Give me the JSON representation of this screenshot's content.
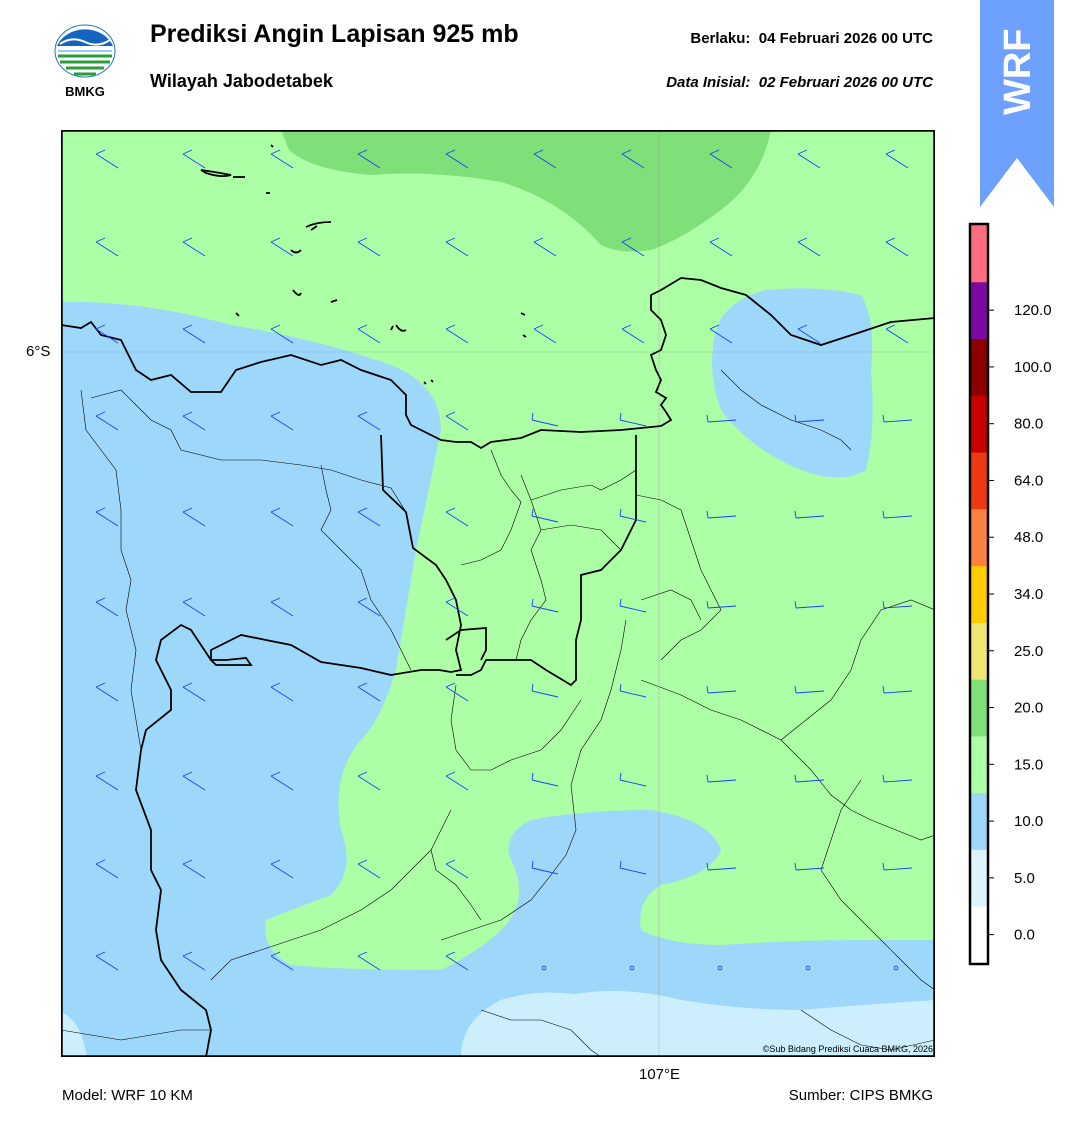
{
  "header": {
    "title": "Prediksi Angin Lapisan 925 mb",
    "subtitle": "Wilayah Jabodetabek",
    "valid_label": "Berlaku:",
    "valid_value": "04 Februari 2026 00 UTC",
    "init_label": "Data Inisial:",
    "init_value": "02 Februari 2026 00 UTC"
  },
  "logo": {
    "text": "BMKG",
    "icon": "bmkg-logo-icon"
  },
  "badge": {
    "text": "WRF",
    "color": "#6ea0ff",
    "icon": "wrf-arrow-badge"
  },
  "map": {
    "lat_label": "6°S",
    "lon_label": "107°E",
    "copyright": "©Sub Bidang Prediksi Cuaca BMKG, 2026",
    "colors": {
      "calm": "#ddf4ff",
      "c0_5": "#cdeffd",
      "c5_10": "#9dd8fb",
      "c10_15": "#adffa6",
      "c15_20": "#7fe07a",
      "barb": "#1f3fff",
      "coast": "#000000"
    }
  },
  "colorbar": {
    "ticks": [
      "0.0",
      "5.0",
      "10.0",
      "15.0",
      "20.0",
      "25.0",
      "34.0",
      "48.0",
      "64.0",
      "80.0",
      "100.0",
      "120.0"
    ],
    "colors": [
      "#ffffff",
      "#ddf4ff",
      "#9dd8fb",
      "#adffa6",
      "#7fe07a",
      "#efe574",
      "#ffcc00",
      "#ff8140",
      "#ee3a12",
      "#c80000",
      "#8c0000",
      "#7d0aa0",
      "#ff6c7e"
    ]
  },
  "footer": {
    "model": "Model: WRF 10 KM",
    "source": "Sumber: CIPS BMKG"
  }
}
